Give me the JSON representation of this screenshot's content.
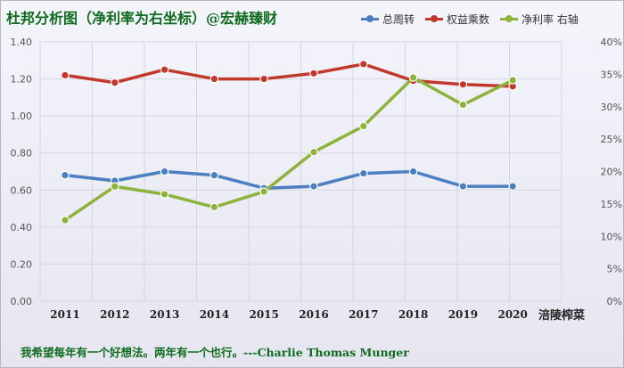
{
  "title": "杜邦分析图（净利率为右坐标）@宏赫臻财",
  "watermark": "涪陵榨菜",
  "quote": "我希望每年有一个好想法。两年有一个也行。---Charlie Thomas  Munger",
  "colors": {
    "turnover": "#4a7fc1",
    "multiplier": "#c0392b",
    "margin": "#8db33c"
  },
  "chart_data": {
    "type": "line",
    "categories": [
      "2011",
      "2012",
      "2013",
      "2014",
      "2015",
      "2016",
      "2017",
      "2018",
      "2019",
      "2020"
    ],
    "left_axis": {
      "min": 0,
      "max": 1.4,
      "ticks": [
        "0.00",
        "0.20",
        "0.40",
        "0.60",
        "0.80",
        "1.00",
        "1.20",
        "1.40"
      ]
    },
    "right_axis": {
      "min": 0,
      "max": 40,
      "ticks": [
        "0%",
        "5%",
        "10%",
        "15%",
        "20%",
        "25%",
        "30%",
        "35%",
        "40%"
      ]
    },
    "legend_position": "top-right",
    "series": [
      {
        "name": "总周转",
        "axis": "left",
        "color": "#4a7fc1",
        "values": [
          0.68,
          0.65,
          0.7,
          0.68,
          0.61,
          0.62,
          0.69,
          0.7,
          0.62,
          0.62
        ]
      },
      {
        "name": "权益乘数",
        "axis": "left",
        "color": "#c0392b",
        "values": [
          1.22,
          1.18,
          1.25,
          1.2,
          1.2,
          1.23,
          1.28,
          1.19,
          1.17,
          1.16
        ]
      },
      {
        "name": "净利率 右轴",
        "axis": "right",
        "color": "#8db33c",
        "values": [
          12.5,
          17.7,
          16.5,
          14.5,
          16.9,
          23.0,
          27.0,
          34.5,
          30.3,
          34.1
        ]
      }
    ]
  }
}
